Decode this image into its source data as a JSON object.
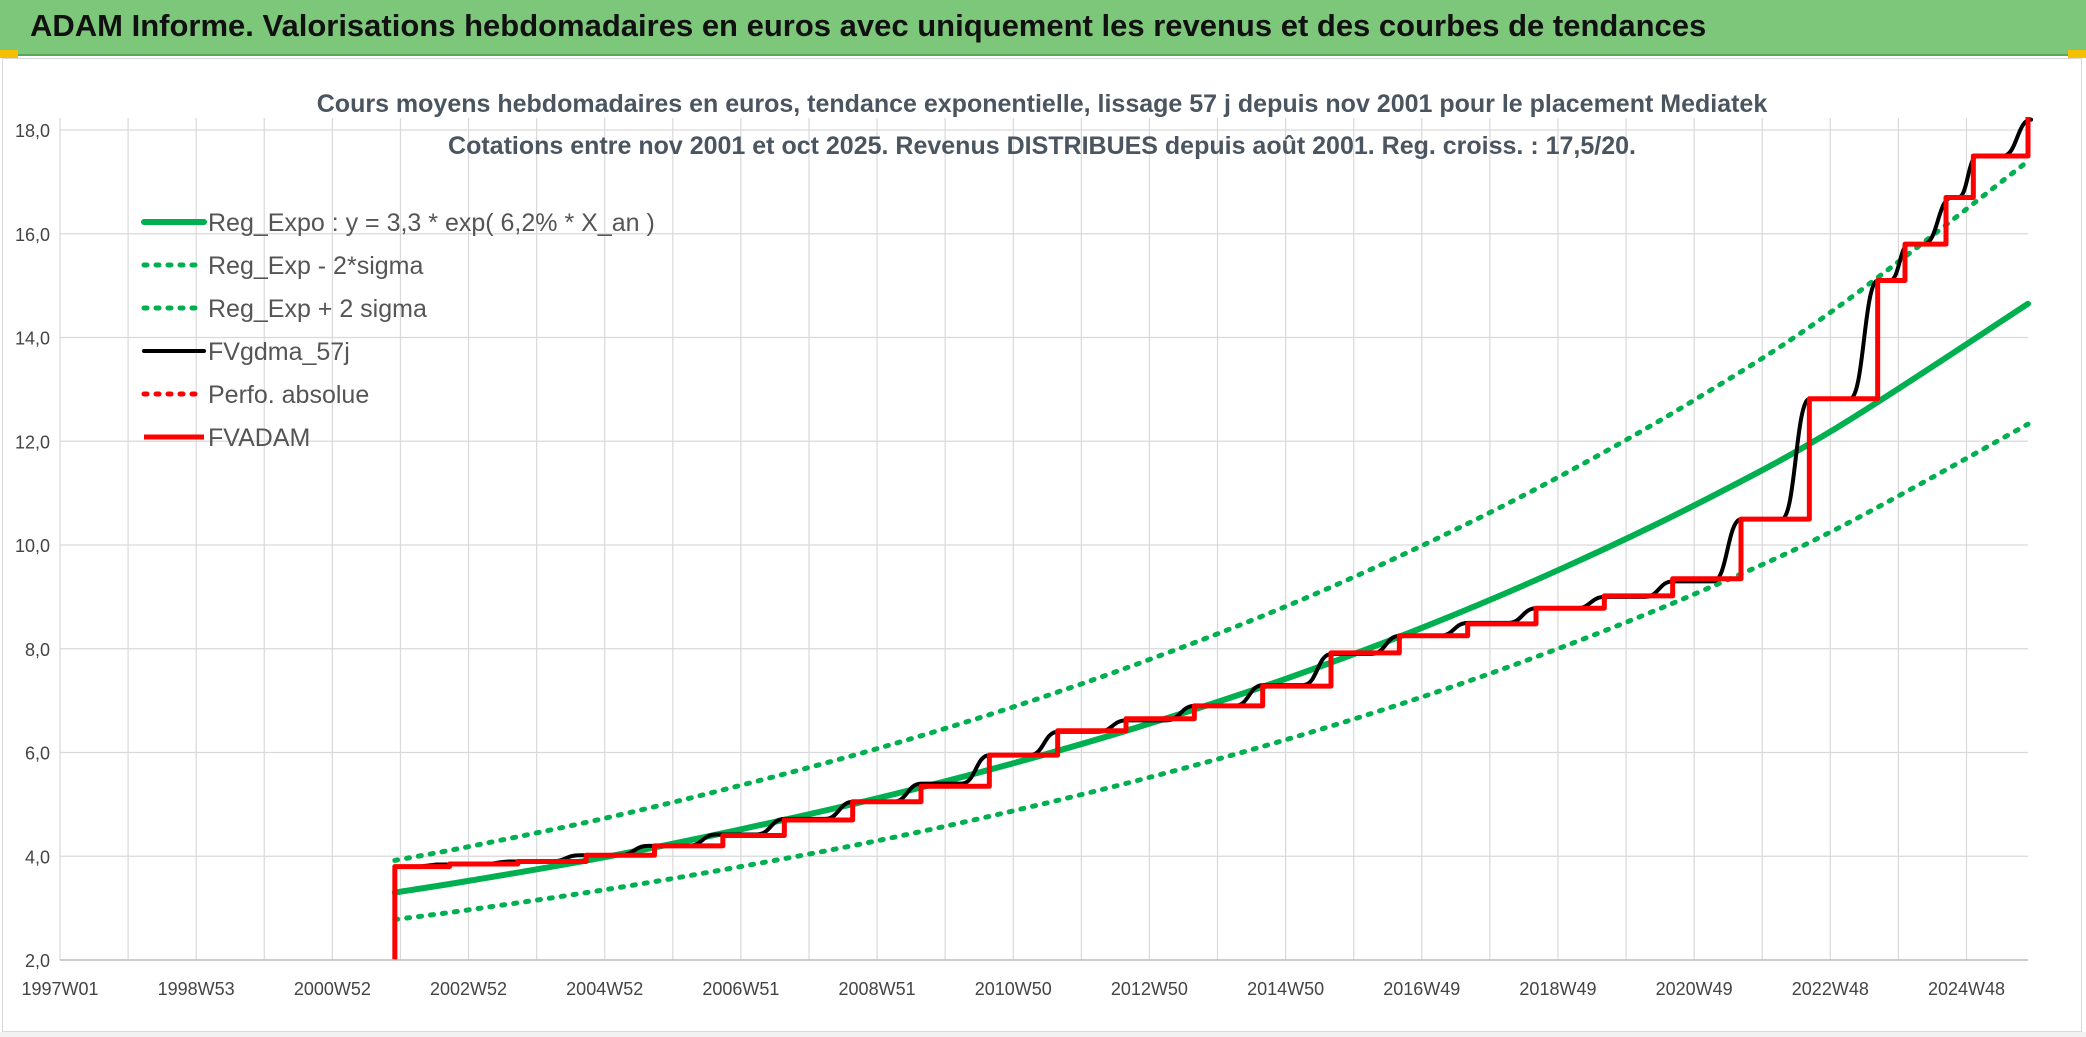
{
  "header": {
    "title": "ADAM Informe. Valorisations hebdomadaires en euros avec uniquement les revenus et des courbes de tendances"
  },
  "colors": {
    "header_bg": "#7dc77a",
    "reg_green": "#00b050",
    "fvgdma_black": "#000000",
    "fvadam_red": "#ff0000",
    "grid": "#d9d9d9"
  },
  "chart_data": {
    "type": "line",
    "title_line1": "Cours moyens hebdomadaires en euros, tendance exponentielle, lissage 57 j depuis nov 2001 pour le placement Mediatek",
    "title_line2": "Cotations entre nov 2001 et oct 2025. Revenus DISTRIBUES depuis août 2001. Reg. croiss. : 17,5/20.",
    "x_tick_labels": [
      "1997W01",
      "1998W53",
      "2000W52",
      "2002W52",
      "2004W52",
      "2006W51",
      "2008W51",
      "2010W50",
      "2012W50",
      "2014W50",
      "2016W49",
      "2018W49",
      "2020W49",
      "2022W48",
      "2024W48"
    ],
    "x_range": [
      1997.0,
      2025.8
    ],
    "ylim": [
      2,
      18
    ],
    "y_ticks": [
      2,
      4,
      6,
      8,
      10,
      12,
      14,
      16,
      18
    ],
    "y_tick_labels": [
      "2,0",
      "4,0",
      "6,0",
      "8,0",
      "10,0",
      "12,0",
      "14,0",
      "16,0",
      "18,0"
    ],
    "grid": true,
    "legend_position": "top-left",
    "series": [
      {
        "name": "Reg_Expo : y = 3,3 * exp( 6,2% *  X_an )",
        "color": "#00b050",
        "style": "solid",
        "x": [
          2001.9,
          2003,
          2005,
          2007,
          2009,
          2011,
          2013,
          2015,
          2017,
          2019,
          2021,
          2023,
          2025.8
        ],
        "y": [
          3.3,
          3.53,
          3.99,
          4.53,
          5.13,
          5.81,
          6.58,
          7.45,
          8.44,
          9.56,
          10.82,
          12.26,
          14.65
        ]
      },
      {
        "name": "Reg_Exp - 2*sigma",
        "color": "#00b050",
        "style": "dotted",
        "x": [
          2001.9,
          2003,
          2005,
          2007,
          2009,
          2011,
          2013,
          2015,
          2017,
          2019,
          2021,
          2023,
          2025.8
        ],
        "y": [
          2.78,
          2.97,
          3.36,
          3.81,
          4.31,
          4.89,
          5.54,
          6.27,
          7.1,
          8.04,
          9.1,
          10.31,
          12.33
        ]
      },
      {
        "name": "Reg_Exp + 2 sigma",
        "color": "#00b050",
        "style": "dotted",
        "x": [
          2001.9,
          2003,
          2005,
          2007,
          2009,
          2011,
          2013,
          2015,
          2017,
          2019,
          2021,
          2023,
          2025.8
        ],
        "y": [
          3.92,
          4.19,
          4.74,
          5.38,
          6.09,
          6.9,
          7.82,
          8.85,
          10.03,
          11.36,
          12.86,
          14.57,
          17.4
        ]
      },
      {
        "name": "FVgdma_57j",
        "color": "#000000",
        "style": "solid",
        "x": [
          2001.9,
          2002.5,
          2003.6,
          2004.6,
          2005.6,
          2006.6,
          2007.6,
          2008.6,
          2009.6,
          2010.6,
          2011.6,
          2012.6,
          2013.6,
          2014.6,
          2015.6,
          2016.6,
          2017.6,
          2018.6,
          2019.6,
          2020.6,
          2021.6,
          2022.6,
          2023.6,
          2024.0,
          2024.6,
          2025.0,
          2025.8
        ],
        "y": [
          3.8,
          3.84,
          3.9,
          4.02,
          4.2,
          4.42,
          4.72,
          5.05,
          5.4,
          5.95,
          6.4,
          6.62,
          6.9,
          7.3,
          7.9,
          8.25,
          8.5,
          8.78,
          9.0,
          9.3,
          10.5,
          12.82,
          15.1,
          15.8,
          16.7,
          17.5,
          18.2
        ]
      },
      {
        "name": "Perfo. absolue",
        "color": "#ff0000",
        "style": "dotted",
        "x": [],
        "y": []
      },
      {
        "name": "FVADAM",
        "color": "#ff0000",
        "style": "step",
        "x": [
          2001.9,
          2001.9,
          2002.7,
          2003.7,
          2004.7,
          2005.7,
          2006.7,
          2007.6,
          2008.6,
          2009.6,
          2010.6,
          2011.6,
          2012.6,
          2013.6,
          2014.6,
          2015.6,
          2016.6,
          2017.6,
          2018.6,
          2019.6,
          2020.6,
          2021.6,
          2022.6,
          2023.6,
          2024.0,
          2024.6,
          2025.0,
          2025.8
        ],
        "y": [
          2.0,
          3.8,
          3.85,
          3.9,
          4.02,
          4.2,
          4.4,
          4.7,
          5.05,
          5.35,
          5.95,
          6.42,
          6.65,
          6.9,
          7.28,
          7.92,
          8.25,
          8.48,
          8.78,
          9.02,
          9.35,
          10.5,
          12.82,
          15.1,
          15.8,
          16.7,
          17.5,
          18.25
        ]
      }
    ]
  }
}
